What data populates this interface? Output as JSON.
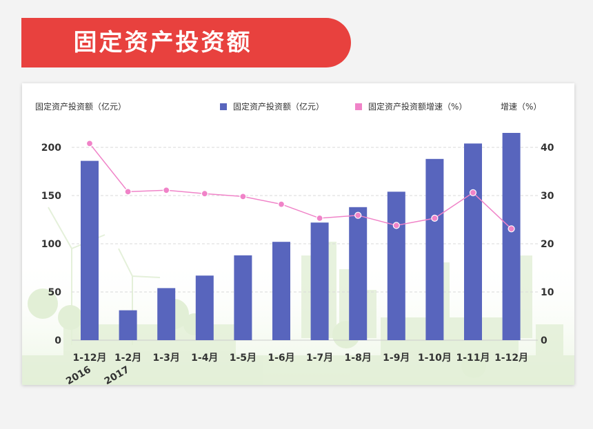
{
  "header": {
    "title": "固定资产投资额"
  },
  "chart_data": {
    "type": "bar",
    "categories": [
      "1-12月",
      "1-2月",
      "1-3月",
      "1-4月",
      "1-5月",
      "1-6月",
      "1-7月",
      "1-8月",
      "1-9月",
      "1-10月",
      "1-11月",
      "1-12月"
    ],
    "year_labels": [
      {
        "index": 0,
        "text": "2016"
      },
      {
        "index": 1,
        "text": "2017"
      }
    ],
    "series": [
      {
        "name": "固定资产投资额（亿元）",
        "type": "bar",
        "axis": "left",
        "color": "#5865bd",
        "values": [
          186,
          31,
          54,
          67,
          88,
          102,
          122,
          138,
          154,
          188,
          204,
          215
        ]
      },
      {
        "name": "固定资产投资额增速（%）",
        "type": "line",
        "axis": "right",
        "color": "#f083c8",
        "values": [
          40.8,
          30.8,
          31.1,
          30.4,
          29.8,
          28.2,
          25.3,
          25.9,
          23.8,
          25.3,
          30.6,
          23.1
        ]
      }
    ],
    "ylabel_left": "固定资产投资额（亿元）",
    "ylabel_right": "增速（%）",
    "ylim_left": [
      0,
      200
    ],
    "yticks_left": [
      0,
      50,
      100,
      150,
      200
    ],
    "ylim_right": [
      0,
      40
    ],
    "yticks_right": [
      0,
      10,
      20,
      30,
      40
    ],
    "legend_position": "top-right",
    "grid": true
  }
}
